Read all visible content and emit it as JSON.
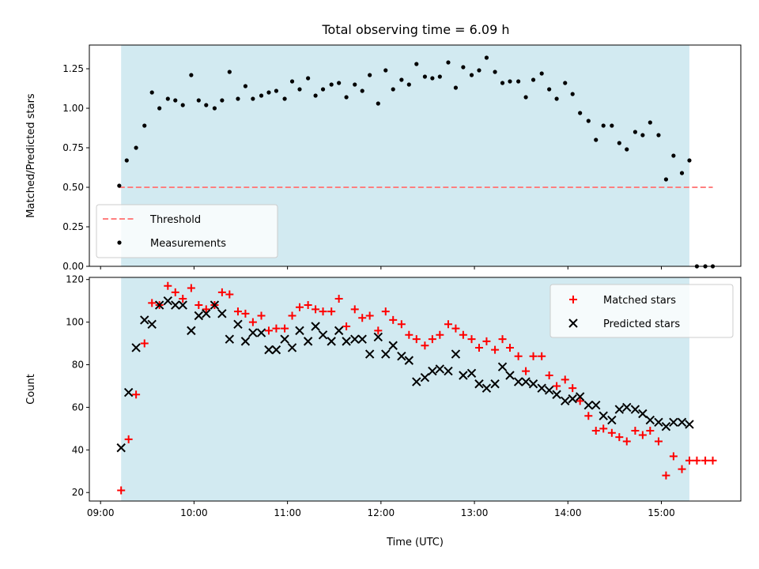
{
  "figure_title": "Total observing time = 6.09 h",
  "colors": {
    "span": "#add8e6",
    "threshold": "#ff7f7f",
    "measurement": "#000000",
    "matched": "#ff0000",
    "predicted": "#000000"
  },
  "chart_data": [
    {
      "type": "scatter",
      "ylabel": "Matched/Predicted stars",
      "xlabel": "",
      "xlim_hours": [
        8.88,
        15.85
      ],
      "ylim": [
        0,
        1.4
      ],
      "yticks": [
        "0.00",
        "0.25",
        "0.50",
        "0.75",
        "1.00",
        "1.25"
      ],
      "ytick_values": [
        0,
        0.25,
        0.5,
        0.75,
        1.0,
        1.25
      ],
      "span_hours": [
        9.22,
        15.3
      ],
      "grid": false,
      "legend_position": "lower-left",
      "series": [
        {
          "name": "Threshold",
          "kind": "dashed-line",
          "x": [
            9.2,
            15.55
          ],
          "y": [
            0.5,
            0.5
          ]
        },
        {
          "name": "Measurements",
          "kind": "dot",
          "x": [
            9.2,
            9.28,
            9.38,
            9.47,
            9.55,
            9.63,
            9.72,
            9.8,
            9.88,
            9.97,
            10.05,
            10.13,
            10.22,
            10.3,
            10.38,
            10.47,
            10.55,
            10.63,
            10.72,
            10.8,
            10.88,
            10.97,
            11.05,
            11.13,
            11.22,
            11.3,
            11.38,
            11.47,
            11.55,
            11.63,
            11.72,
            11.8,
            11.88,
            11.97,
            12.05,
            12.13,
            12.22,
            12.3,
            12.38,
            12.47,
            12.55,
            12.63,
            12.72,
            12.8,
            12.88,
            12.97,
            13.05,
            13.13,
            13.22,
            13.3,
            13.38,
            13.47,
            13.55,
            13.63,
            13.72,
            13.8,
            13.88,
            13.97,
            14.05,
            14.13,
            14.22,
            14.3,
            14.38,
            14.47,
            14.55,
            14.63,
            14.72,
            14.8,
            14.88,
            14.97,
            15.05,
            15.13,
            15.22,
            15.3,
            15.38,
            15.47,
            15.55
          ],
          "y": [
            0.51,
            0.67,
            0.75,
            0.89,
            1.1,
            1.0,
            1.06,
            1.05,
            1.02,
            1.21,
            1.05,
            1.02,
            1.0,
            1.05,
            1.23,
            1.06,
            1.14,
            1.06,
            1.08,
            1.1,
            1.11,
            1.06,
            1.17,
            1.12,
            1.19,
            1.08,
            1.12,
            1.15,
            1.16,
            1.07,
            1.15,
            1.11,
            1.21,
            1.03,
            1.24,
            1.12,
            1.18,
            1.15,
            1.28,
            1.2,
            1.19,
            1.2,
            1.29,
            1.13,
            1.26,
            1.21,
            1.24,
            1.32,
            1.23,
            1.16,
            1.17,
            1.17,
            1.07,
            1.18,
            1.22,
            1.12,
            1.06,
            1.16,
            1.09,
            0.97,
            0.92,
            0.8,
            0.89,
            0.89,
            0.78,
            0.74,
            0.85,
            0.83,
            0.91,
            0.83,
            0.55,
            0.7,
            0.59,
            0.67,
            0.0,
            0.0,
            0.0
          ]
        }
      ]
    },
    {
      "type": "scatter",
      "ylabel": "Count",
      "xlabel": "Time (UTC)",
      "xlim_hours": [
        8.88,
        15.85
      ],
      "ylim": [
        16,
        121
      ],
      "yticks": [
        "20",
        "40",
        "60",
        "80",
        "100",
        "120"
      ],
      "ytick_values": [
        20,
        40,
        60,
        80,
        100,
        120
      ],
      "xticks": [
        "09:00",
        "10:00",
        "11:00",
        "12:00",
        "13:00",
        "14:00",
        "15:00"
      ],
      "xtick_values": [
        9,
        10,
        11,
        12,
        13,
        14,
        15
      ],
      "span_hours": [
        9.22,
        15.3
      ],
      "grid": false,
      "legend_position": "upper-right",
      "series": [
        {
          "name": "Matched stars",
          "kind": "plus",
          "x": [
            9.22,
            9.3,
            9.38,
            9.47,
            9.55,
            9.63,
            9.72,
            9.8,
            9.88,
            9.97,
            10.05,
            10.13,
            10.22,
            10.3,
            10.38,
            10.47,
            10.55,
            10.63,
            10.72,
            10.8,
            10.88,
            10.97,
            11.05,
            11.13,
            11.22,
            11.3,
            11.38,
            11.47,
            11.55,
            11.63,
            11.72,
            11.8,
            11.88,
            11.97,
            12.05,
            12.13,
            12.22,
            12.3,
            12.38,
            12.47,
            12.55,
            12.63,
            12.72,
            12.8,
            12.88,
            12.97,
            13.05,
            13.13,
            13.22,
            13.3,
            13.38,
            13.47,
            13.55,
            13.63,
            13.72,
            13.8,
            13.88,
            13.97,
            14.05,
            14.13,
            14.22,
            14.3,
            14.38,
            14.47,
            14.55,
            14.63,
            14.72,
            14.8,
            14.88,
            14.97,
            15.05,
            15.13,
            15.22,
            15.3,
            15.38,
            15.47,
            15.55
          ],
          "y": [
            21,
            45,
            66,
            90,
            109,
            108,
            117,
            114,
            111,
            116,
            108,
            106,
            108,
            114,
            113,
            105,
            104,
            100,
            103,
            96,
            97,
            97,
            103,
            107,
            108,
            106,
            105,
            105,
            111,
            98,
            106,
            102,
            103,
            96,
            105,
            101,
            99,
            94,
            92,
            89,
            92,
            94,
            99,
            97,
            94,
            92,
            88,
            91,
            87,
            92,
            88,
            84,
            77,
            84,
            84,
            75,
            70,
            73,
            69,
            63,
            56,
            49,
            50,
            48,
            46,
            44,
            49,
            47,
            49,
            44,
            28,
            37,
            31,
            35,
            35,
            35,
            35
          ]
        },
        {
          "name": "Predicted stars",
          "kind": "cross",
          "x": [
            9.22,
            9.3,
            9.38,
            9.47,
            9.55,
            9.63,
            9.72,
            9.8,
            9.88,
            9.97,
            10.05,
            10.13,
            10.22,
            10.3,
            10.38,
            10.47,
            10.55,
            10.63,
            10.72,
            10.8,
            10.88,
            10.97,
            11.05,
            11.13,
            11.22,
            11.3,
            11.38,
            11.47,
            11.55,
            11.63,
            11.72,
            11.8,
            11.88,
            11.97,
            12.05,
            12.13,
            12.22,
            12.3,
            12.38,
            12.47,
            12.55,
            12.63,
            12.72,
            12.8,
            12.88,
            12.97,
            13.05,
            13.13,
            13.22,
            13.3,
            13.38,
            13.47,
            13.55,
            13.63,
            13.72,
            13.8,
            13.88,
            13.97,
            14.05,
            14.13,
            14.22,
            14.3,
            14.38,
            14.47,
            14.55,
            14.63,
            14.72,
            14.8,
            14.88,
            14.97,
            15.05,
            15.13,
            15.22,
            15.3
          ],
          "y": [
            41,
            67,
            88,
            101,
            99,
            108,
            110,
            108,
            108,
            96,
            103,
            104,
            108,
            104,
            92,
            99,
            91,
            95,
            95,
            87,
            87,
            92,
            88,
            96,
            91,
            98,
            94,
            91,
            96,
            91,
            92,
            92,
            85,
            93,
            85,
            89,
            84,
            82,
            72,
            74,
            77,
            78,
            77,
            85,
            75,
            76,
            71,
            69,
            71,
            79,
            75,
            72,
            72,
            71,
            69,
            68,
            66,
            63,
            64,
            65,
            61,
            61,
            56,
            54,
            59,
            60,
            59,
            57,
            54,
            53,
            51,
            53,
            53,
            52
          ]
        }
      ]
    }
  ]
}
